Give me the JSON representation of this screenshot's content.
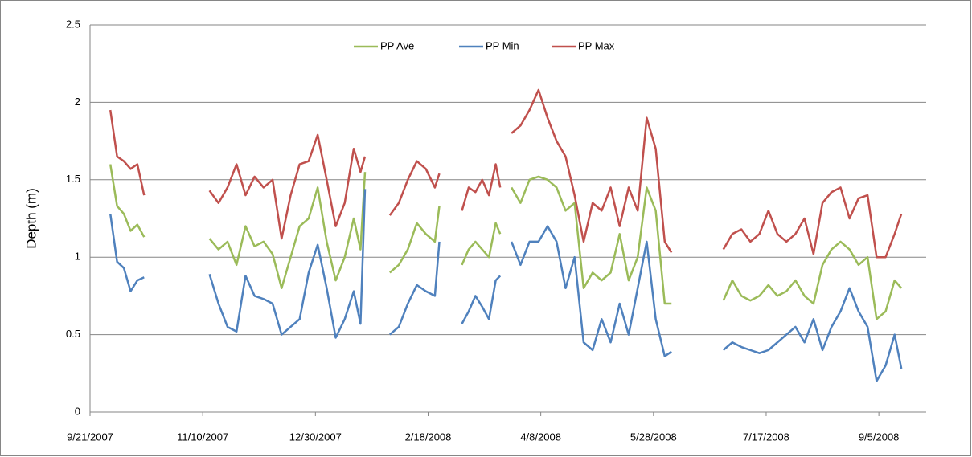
{
  "chart_data": {
    "type": "line",
    "y_label": "Depth (m)",
    "x": [
      "9/30/2007",
      "10/3/2007",
      "10/6/2007",
      "10/9/2007",
      "10/12/2007",
      "10/15/2007",
      "10/30/2007",
      "11/13/2007",
      "11/17/2007",
      "11/21/2007",
      "11/25/2007",
      "11/29/2007",
      "12/3/2007",
      "12/7/2007",
      "12/11/2007",
      "12/15/2007",
      "12/19/2007",
      "12/23/2007",
      "12/27/2007",
      "12/31/2007",
      "1/4/2008",
      "1/8/2008",
      "1/12/2008",
      "1/16/2008",
      "1/19/2008",
      "1/21/2008",
      "1/27/2008",
      "2/1/2008",
      "2/5/2008",
      "2/9/2008",
      "2/13/2008",
      "2/17/2008",
      "2/21/2008",
      "2/23/2008",
      "2/28/2008",
      "3/4/2008",
      "3/7/2008",
      "3/10/2008",
      "3/13/2008",
      "3/16/2008",
      "3/19/2008",
      "3/21/2008",
      "3/23/2008",
      "3/26/2008",
      "3/30/2008",
      "4/3/2008",
      "4/7/2008",
      "4/11/2008",
      "4/15/2008",
      "4/19/2008",
      "4/23/2008",
      "4/27/2008",
      "5/1/2008",
      "5/5/2008",
      "5/9/2008",
      "5/13/2008",
      "5/17/2008",
      "5/21/2008",
      "5/25/2008",
      "5/29/2008",
      "6/2/2008",
      "6/5/2008",
      "6/17/2008",
      "6/28/2008",
      "7/2/2008",
      "7/6/2008",
      "7/10/2008",
      "7/14/2008",
      "7/18/2008",
      "7/22/2008",
      "7/26/2008",
      "7/30/2008",
      "8/3/2008",
      "8/7/2008",
      "8/11/2008",
      "8/15/2008",
      "8/19/2008",
      "8/23/2008",
      "8/27/2008",
      "8/31/2008",
      "9/4/2008",
      "9/8/2008",
      "9/12/2008",
      "9/15/2008"
    ],
    "series": [
      {
        "name": "PP Ave",
        "color": "#9bbb59",
        "values": [
          1.6,
          1.33,
          1.28,
          1.17,
          1.21,
          1.13,
          null,
          1.12,
          1.05,
          1.1,
          0.95,
          1.2,
          1.07,
          1.1,
          1.02,
          0.8,
          1.0,
          1.2,
          1.25,
          1.45,
          1.1,
          0.85,
          1.0,
          1.25,
          1.05,
          1.55,
          null,
          0.9,
          0.95,
          1.05,
          1.22,
          1.15,
          1.1,
          1.33,
          null,
          0.95,
          1.05,
          1.1,
          1.05,
          1.0,
          1.22,
          1.15,
          null,
          1.45,
          1.35,
          1.5,
          1.52,
          1.5,
          1.45,
          1.3,
          1.35,
          0.8,
          0.9,
          0.85,
          0.9,
          1.15,
          0.85,
          1.0,
          1.45,
          1.3,
          0.7,
          0.7,
          null,
          0.72,
          0.85,
          0.75,
          0.72,
          0.75,
          0.82,
          0.75,
          0.78,
          0.85,
          0.75,
          0.7,
          0.95,
          1.05,
          1.1,
          1.05,
          0.95,
          1.0,
          0.6,
          0.65,
          0.85,
          0.8
        ]
      },
      {
        "name": "PP Min",
        "color": "#4f81bd",
        "values": [
          1.28,
          0.97,
          0.93,
          0.78,
          0.85,
          0.87,
          null,
          0.89,
          0.7,
          0.55,
          0.52,
          0.88,
          0.75,
          0.73,
          0.7,
          0.5,
          0.55,
          0.6,
          0.9,
          1.08,
          0.8,
          0.48,
          0.6,
          0.78,
          0.57,
          1.44,
          null,
          0.5,
          0.55,
          0.7,
          0.82,
          0.78,
          0.75,
          1.1,
          null,
          0.57,
          0.65,
          0.75,
          0.68,
          0.6,
          0.85,
          0.88,
          null,
          1.1,
          0.95,
          1.1,
          1.1,
          1.2,
          1.1,
          0.8,
          1.0,
          0.45,
          0.4,
          0.6,
          0.45,
          0.7,
          0.5,
          0.8,
          1.1,
          0.6,
          0.36,
          0.39,
          null,
          0.4,
          0.45,
          0.42,
          0.4,
          0.38,
          0.4,
          0.45,
          0.5,
          0.55,
          0.45,
          0.6,
          0.4,
          0.55,
          0.65,
          0.8,
          0.65,
          0.55,
          0.2,
          0.3,
          0.5,
          0.28
        ]
      },
      {
        "name": "PP Max",
        "color": "#c0504d",
        "values": [
          1.95,
          1.65,
          1.62,
          1.57,
          1.6,
          1.4,
          null,
          1.43,
          1.35,
          1.45,
          1.6,
          1.4,
          1.52,
          1.45,
          1.5,
          1.12,
          1.4,
          1.6,
          1.62,
          1.79,
          1.5,
          1.2,
          1.35,
          1.7,
          1.55,
          1.65,
          null,
          1.27,
          1.35,
          1.5,
          1.62,
          1.57,
          1.45,
          1.54,
          null,
          1.3,
          1.45,
          1.42,
          1.5,
          1.4,
          1.6,
          1.45,
          null,
          1.8,
          1.85,
          1.95,
          2.08,
          1.9,
          1.75,
          1.65,
          1.4,
          1.1,
          1.35,
          1.3,
          1.45,
          1.2,
          1.45,
          1.3,
          1.9,
          1.7,
          1.1,
          1.03,
          null,
          1.05,
          1.15,
          1.18,
          1.1,
          1.15,
          1.3,
          1.15,
          1.1,
          1.15,
          1.25,
          1.02,
          1.35,
          1.42,
          1.45,
          1.25,
          1.38,
          1.4,
          1.0,
          1.0,
          1.15,
          1.28
        ]
      }
    ],
    "xlim": [
      "9/21/2007",
      "9/26/2008"
    ],
    "xticks": [
      "9/21/2007",
      "11/10/2007",
      "12/30/2007",
      "2/18/2008",
      "4/8/2008",
      "5/28/2008",
      "7/17/2008",
      "9/5/2008"
    ],
    "ylim": [
      0,
      2.5
    ],
    "yticks": [
      0,
      0.5,
      1,
      1.5,
      2,
      2.5
    ],
    "grid": true,
    "legend": "top"
  }
}
